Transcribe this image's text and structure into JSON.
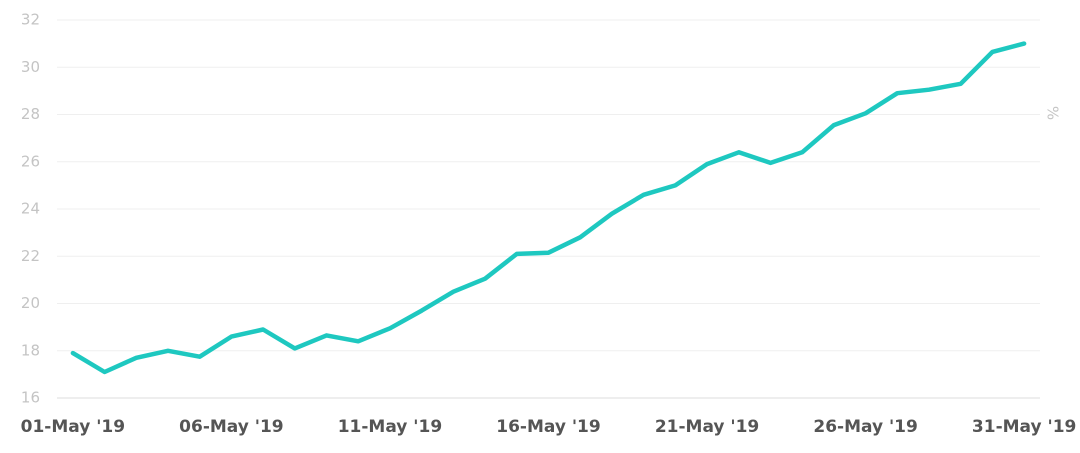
{
  "chart_data": {
    "type": "line",
    "y_label": "%",
    "categories": [
      "01-May '19",
      null,
      null,
      null,
      null,
      "06-May '19",
      null,
      null,
      null,
      null,
      "11-May '19",
      null,
      null,
      null,
      null,
      "16-May '19",
      null,
      null,
      null,
      null,
      "21-May '19",
      null,
      null,
      null,
      null,
      "26-May '19",
      null,
      null,
      null,
      null,
      "31-May '19"
    ],
    "series": [
      {
        "color": "#1ec8c0",
        "values": [
          17.9,
          17.1,
          17.7,
          18.0,
          17.75,
          18.6,
          18.9,
          18.1,
          18.65,
          18.4,
          18.95,
          19.7,
          20.5,
          21.05,
          22.1,
          22.15,
          22.8,
          23.8,
          24.6,
          25.0,
          25.9,
          26.4,
          25.95,
          26.4,
          27.55,
          28.05,
          28.9,
          29.05,
          29.3,
          30.65,
          31.0
        ]
      }
    ],
    "ylim": [
      16,
      32
    ],
    "yticks": [
      16,
      18,
      20,
      22,
      24,
      26,
      28,
      30,
      32
    ],
    "grid": true
  }
}
